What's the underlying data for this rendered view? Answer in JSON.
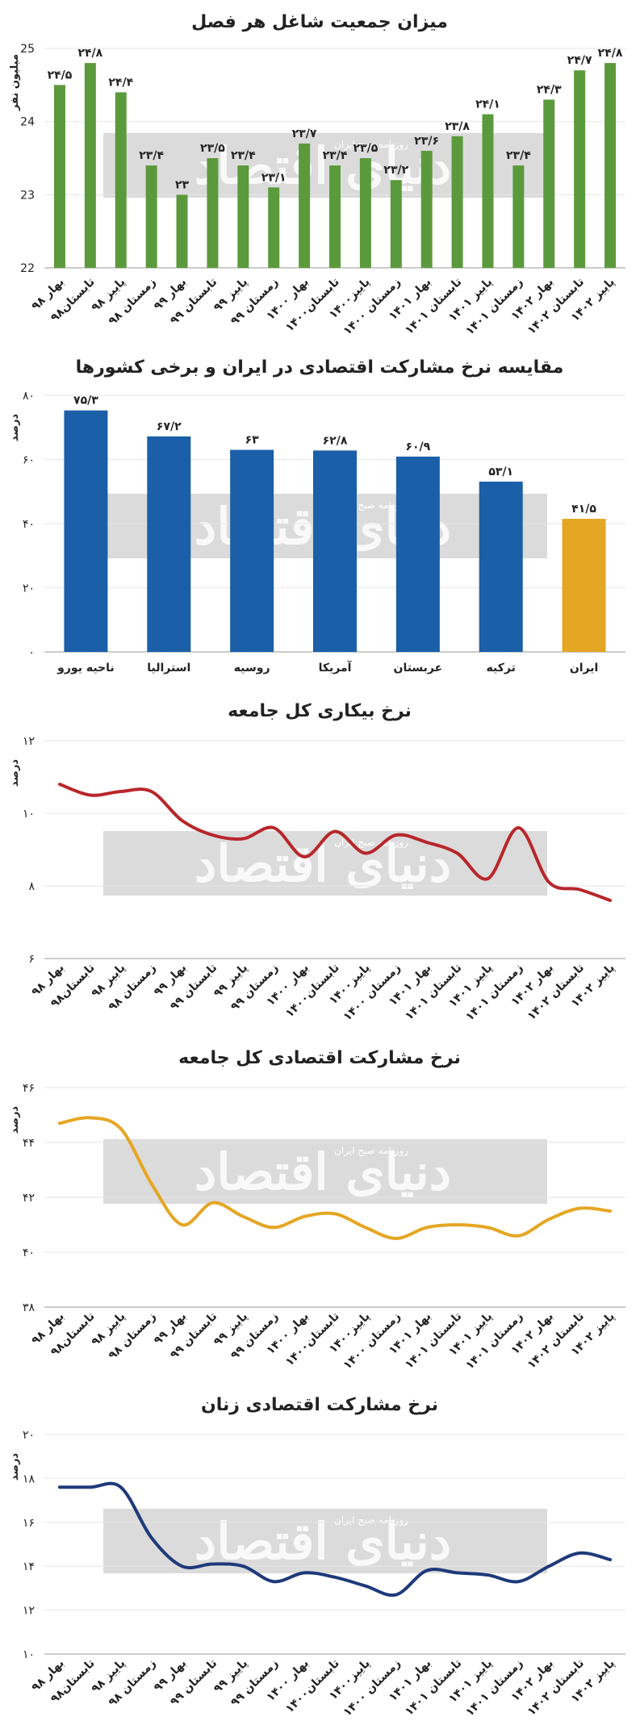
{
  "watermark": {
    "logo_text": "دنیای اقتصاد",
    "subtitle": "روزنامه صبح ایران"
  },
  "chart_data": [
    {
      "type": "bar",
      "title": "میزان جمعیت شاغل هر فصل",
      "ylabel": "میلیون نفر",
      "ylim": [
        22,
        25
      ],
      "yticks": [
        "22",
        "23",
        "24",
        "25"
      ],
      "bar_color": "#5b9a3c",
      "categories": [
        "بهار ۹۸",
        "تابستان۹۸",
        "پاییز ۹۸",
        "زمستان ۹۸",
        "بهار ۹۹",
        "تابستان ۹۹",
        "پاییز ۹۹",
        "زمستان ۹۹",
        "بهار ۱۴۰۰",
        "تابستان۱۴۰۰",
        "پاییز۱۴۰۰",
        "زمستان ۱۴۰۰",
        "بهار ۱۴۰۱",
        "تابستان ۱۴۰۱",
        "پاییز ۱۴۰۱",
        "زمستان ۱۴۰۱",
        "بهار ۱۴۰۲",
        "تابستان ۱۴۰۲",
        "پاییز ۱۴۰۲"
      ],
      "values": [
        24.5,
        24.8,
        24.4,
        23.4,
        23.0,
        23.5,
        23.4,
        23.1,
        23.7,
        23.4,
        23.5,
        23.2,
        23.6,
        23.8,
        24.1,
        23.4,
        24.3,
        24.7,
        24.8
      ],
      "value_labels": [
        "۲۴/۵",
        "۲۴/۸",
        "۲۴/۴",
        "۲۳/۴",
        "۲۳",
        "۲۳/۵",
        "۲۳/۴",
        "۲۳/۱",
        "۲۳/۷",
        "۲۳/۴",
        "۲۳/۵",
        "۲۳/۲",
        "۲۳/۶",
        "۲۳/۸",
        "۲۴/۱",
        "۲۳/۴",
        "۲۴/۳",
        "۲۴/۷",
        "۲۴/۸"
      ]
    },
    {
      "type": "bar",
      "title": "مقایسه نرخ مشارکت اقتصادی در ایران و برخی کشورها",
      "ylabel": "درصد",
      "ylim": [
        0,
        80
      ],
      "yticks": [
        "۰",
        "۲۰",
        "۴۰",
        "۶۰",
        "۸۰"
      ],
      "bar_color": "#1a5fa8",
      "highlight_color": "#e5a623",
      "highlight_index": 6,
      "categories": [
        "ناحیه یورو",
        "استرالیا",
        "روسیه",
        "آمریکا",
        "عربستان",
        "ترکیه",
        "ایران"
      ],
      "values": [
        75.3,
        67.2,
        63,
        62.8,
        60.9,
        53.1,
        41.5
      ],
      "value_labels": [
        "۷۵/۳",
        "۶۷/۲",
        "۶۳",
        "۶۲/۸",
        "۶۰/۹",
        "۵۳/۱",
        "۴۱/۵"
      ]
    },
    {
      "type": "line",
      "title": "نرخ بیکاری کل جامعه",
      "ylabel": "درصد",
      "ylim": [
        6,
        12
      ],
      "yticks": [
        "۶",
        "۸",
        "۱۰",
        "۱۲"
      ],
      "line_color": "#b8262a",
      "categories": [
        "بهار ۹۸",
        "تابستان۹۸",
        "پاییز ۹۸",
        "زمستان ۹۸",
        "بهار ۹۹",
        "تابستان ۹۹",
        "پاییز ۹۹",
        "زمستان ۹۹",
        "بهار ۱۴۰۰",
        "تابستان۱۴۰۰",
        "پاییز۱۴۰۰",
        "زمستان ۱۴۰۰",
        "بهار ۱۴۰۱",
        "تابستان ۱۴۰۱",
        "پاییز ۱۴۰۱",
        "زمستان ۱۴۰۱",
        "بهار ۱۴۰۲",
        "تابستان ۱۴۰۲",
        "پاییز ۱۴۰۲"
      ],
      "values": [
        10.8,
        10.5,
        10.6,
        10.6,
        9.8,
        9.4,
        9.3,
        9.6,
        8.8,
        9.5,
        8.9,
        9.4,
        9.2,
        8.9,
        8.2,
        9.6,
        8.1,
        7.9,
        7.6
      ]
    },
    {
      "type": "line",
      "title": "نرخ مشارکت اقتصادی کل جامعه",
      "ylabel": "درصد",
      "ylim": [
        38,
        46
      ],
      "yticks": [
        "۳۸",
        "۴۰",
        "۴۲",
        "۴۴",
        "۴۶"
      ],
      "line_color": "#e5a623",
      "categories": [
        "بهار ۹۸",
        "تابستان۹۸",
        "پاییز ۹۸",
        "زمستان ۹۸",
        "بهار ۹۹",
        "تابستان ۹۹",
        "پاییز ۹۹",
        "زمستان ۹۹",
        "بهار ۱۴۰۰",
        "تابستان۱۴۰۰",
        "پاییز۱۴۰۰",
        "زمستان ۱۴۰۰",
        "بهار ۱۴۰۱",
        "تابستان ۱۴۰۱",
        "پاییز ۱۴۰۱",
        "زمستان ۱۴۰۱",
        "بهار ۱۴۰۲",
        "تابستان ۱۴۰۲",
        "پاییز ۱۴۰۲"
      ],
      "values": [
        44.7,
        44.9,
        44.5,
        42.5,
        41.0,
        41.8,
        41.3,
        40.9,
        41.3,
        41.4,
        40.9,
        40.5,
        40.9,
        41.0,
        40.9,
        40.6,
        41.2,
        41.6,
        41.5
      ]
    },
    {
      "type": "line",
      "title": "نرخ مشارکت اقتصادی زنان",
      "ylabel": "درصد",
      "ylim": [
        10,
        20
      ],
      "yticks": [
        "۱۰",
        "۱۲",
        "۱۴",
        "۱۶",
        "۱۸",
        "۲۰"
      ],
      "line_color": "#1e3a7a",
      "categories": [
        "بهار ۹۸",
        "تابستان۹۸",
        "پاییز ۹۸",
        "زمستان ۹۸",
        "بهار ۹۹",
        "تابستان ۹۹",
        "پاییز ۹۹",
        "زمستان ۹۹",
        "بهار ۱۴۰۰",
        "تابستان۱۴۰۰",
        "پاییز۱۴۰۰",
        "زمستان ۱۴۰۰",
        "بهار ۱۴۰۱",
        "تابستان ۱۴۰۱",
        "پاییز ۱۴۰۱",
        "زمستان ۱۴۰۱",
        "بهار ۱۴۰۲",
        "تابستان ۱۴۰۲",
        "پاییز ۱۴۰۲"
      ],
      "values": [
        17.6,
        17.6,
        17.6,
        15.3,
        14.0,
        14.1,
        14.0,
        13.3,
        13.7,
        13.5,
        13.1,
        12.7,
        13.8,
        13.7,
        13.6,
        13.3,
        14.0,
        14.6,
        14.3
      ]
    }
  ]
}
